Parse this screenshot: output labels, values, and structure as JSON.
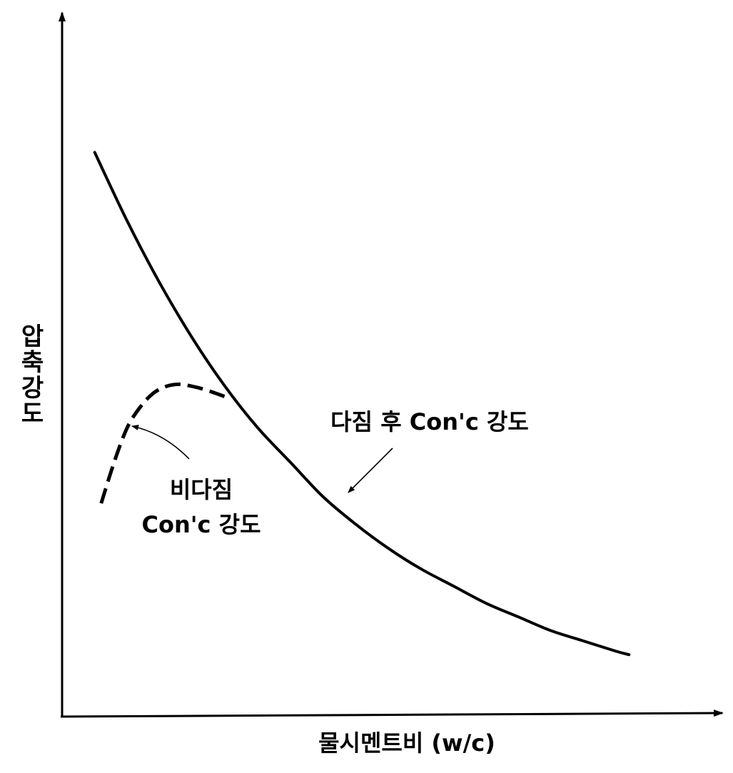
{
  "chart_data": {
    "type": "line",
    "title": "",
    "xlabel": "물시멘트비 (w/c)",
    "ylabel": "압축강도",
    "ticks_shown": false,
    "grid": false,
    "series": [
      {
        "name": "다짐 후 Con'c 강도",
        "style": "solid",
        "x": [
          0.05,
          0.1,
          0.15,
          0.2,
          0.25,
          0.3,
          0.35,
          0.4,
          0.45,
          0.5,
          0.55,
          0.6,
          0.65,
          0.7,
          0.75,
          0.8,
          0.85,
          0.87
        ],
        "y": [
          0.82,
          0.72,
          0.63,
          0.55,
          0.48,
          0.42,
          0.37,
          0.32,
          0.28,
          0.245,
          0.215,
          0.19,
          0.165,
          0.145,
          0.125,
          0.11,
          0.095,
          0.09
        ]
      },
      {
        "name": "비다짐 Con'c 강도",
        "style": "dashed",
        "x": [
          0.06,
          0.08,
          0.1,
          0.12,
          0.14,
          0.16,
          0.18,
          0.2,
          0.22,
          0.25
        ],
        "y": [
          0.31,
          0.37,
          0.42,
          0.45,
          0.47,
          0.48,
          0.483,
          0.48,
          0.475,
          0.465
        ]
      }
    ],
    "annotations": [
      {
        "text": "다짐 후 Con'c 강도"
      },
      {
        "text_line1": "비다짐",
        "text_line2": "Con'c 강도"
      }
    ]
  }
}
